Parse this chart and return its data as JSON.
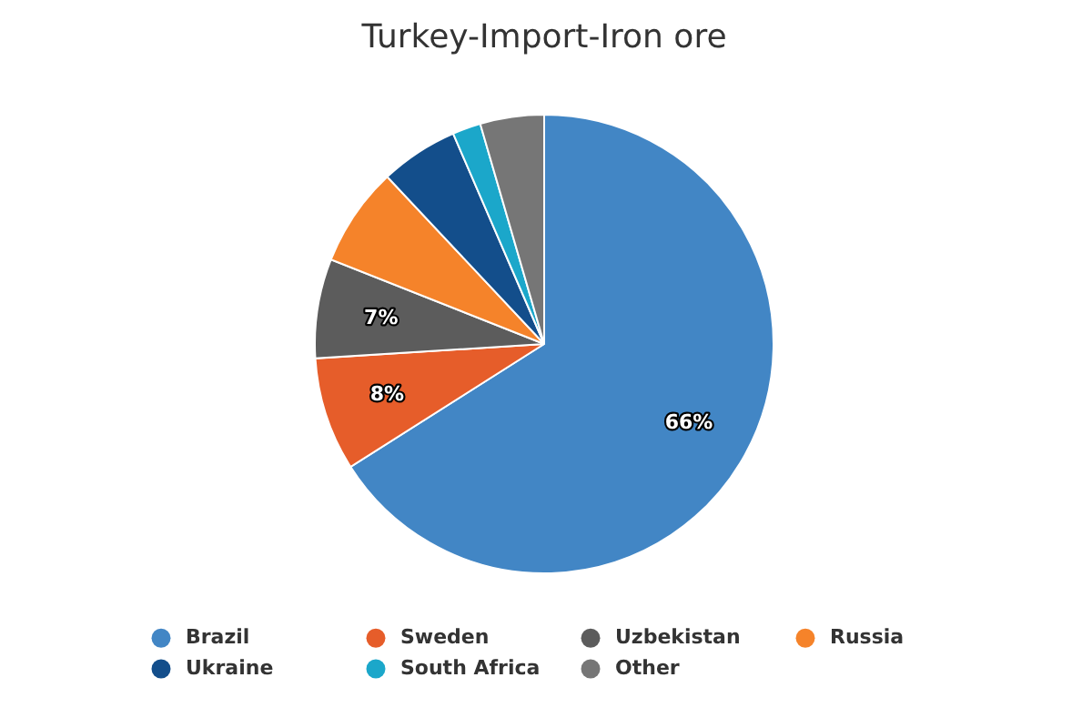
{
  "chart_data": {
    "type": "pie",
    "title": "Turkey-Import-Iron ore",
    "categories": [
      "Brazil",
      "Sweden",
      "Uzbekistan",
      "Russia",
      "Ukraine",
      "South Africa",
      "Other"
    ],
    "values": [
      66,
      8,
      7,
      7,
      5.5,
      2,
      4.5
    ],
    "colors": [
      "#4286c5",
      "#e65d2a",
      "#5c5c5c",
      "#f5832a",
      "#134e8b",
      "#1ba7ca",
      "#767676"
    ],
    "value_labels": [
      "66%",
      "8%",
      "7%",
      null,
      null,
      null,
      null
    ],
    "legend": "bottom",
    "marker": "circle"
  }
}
